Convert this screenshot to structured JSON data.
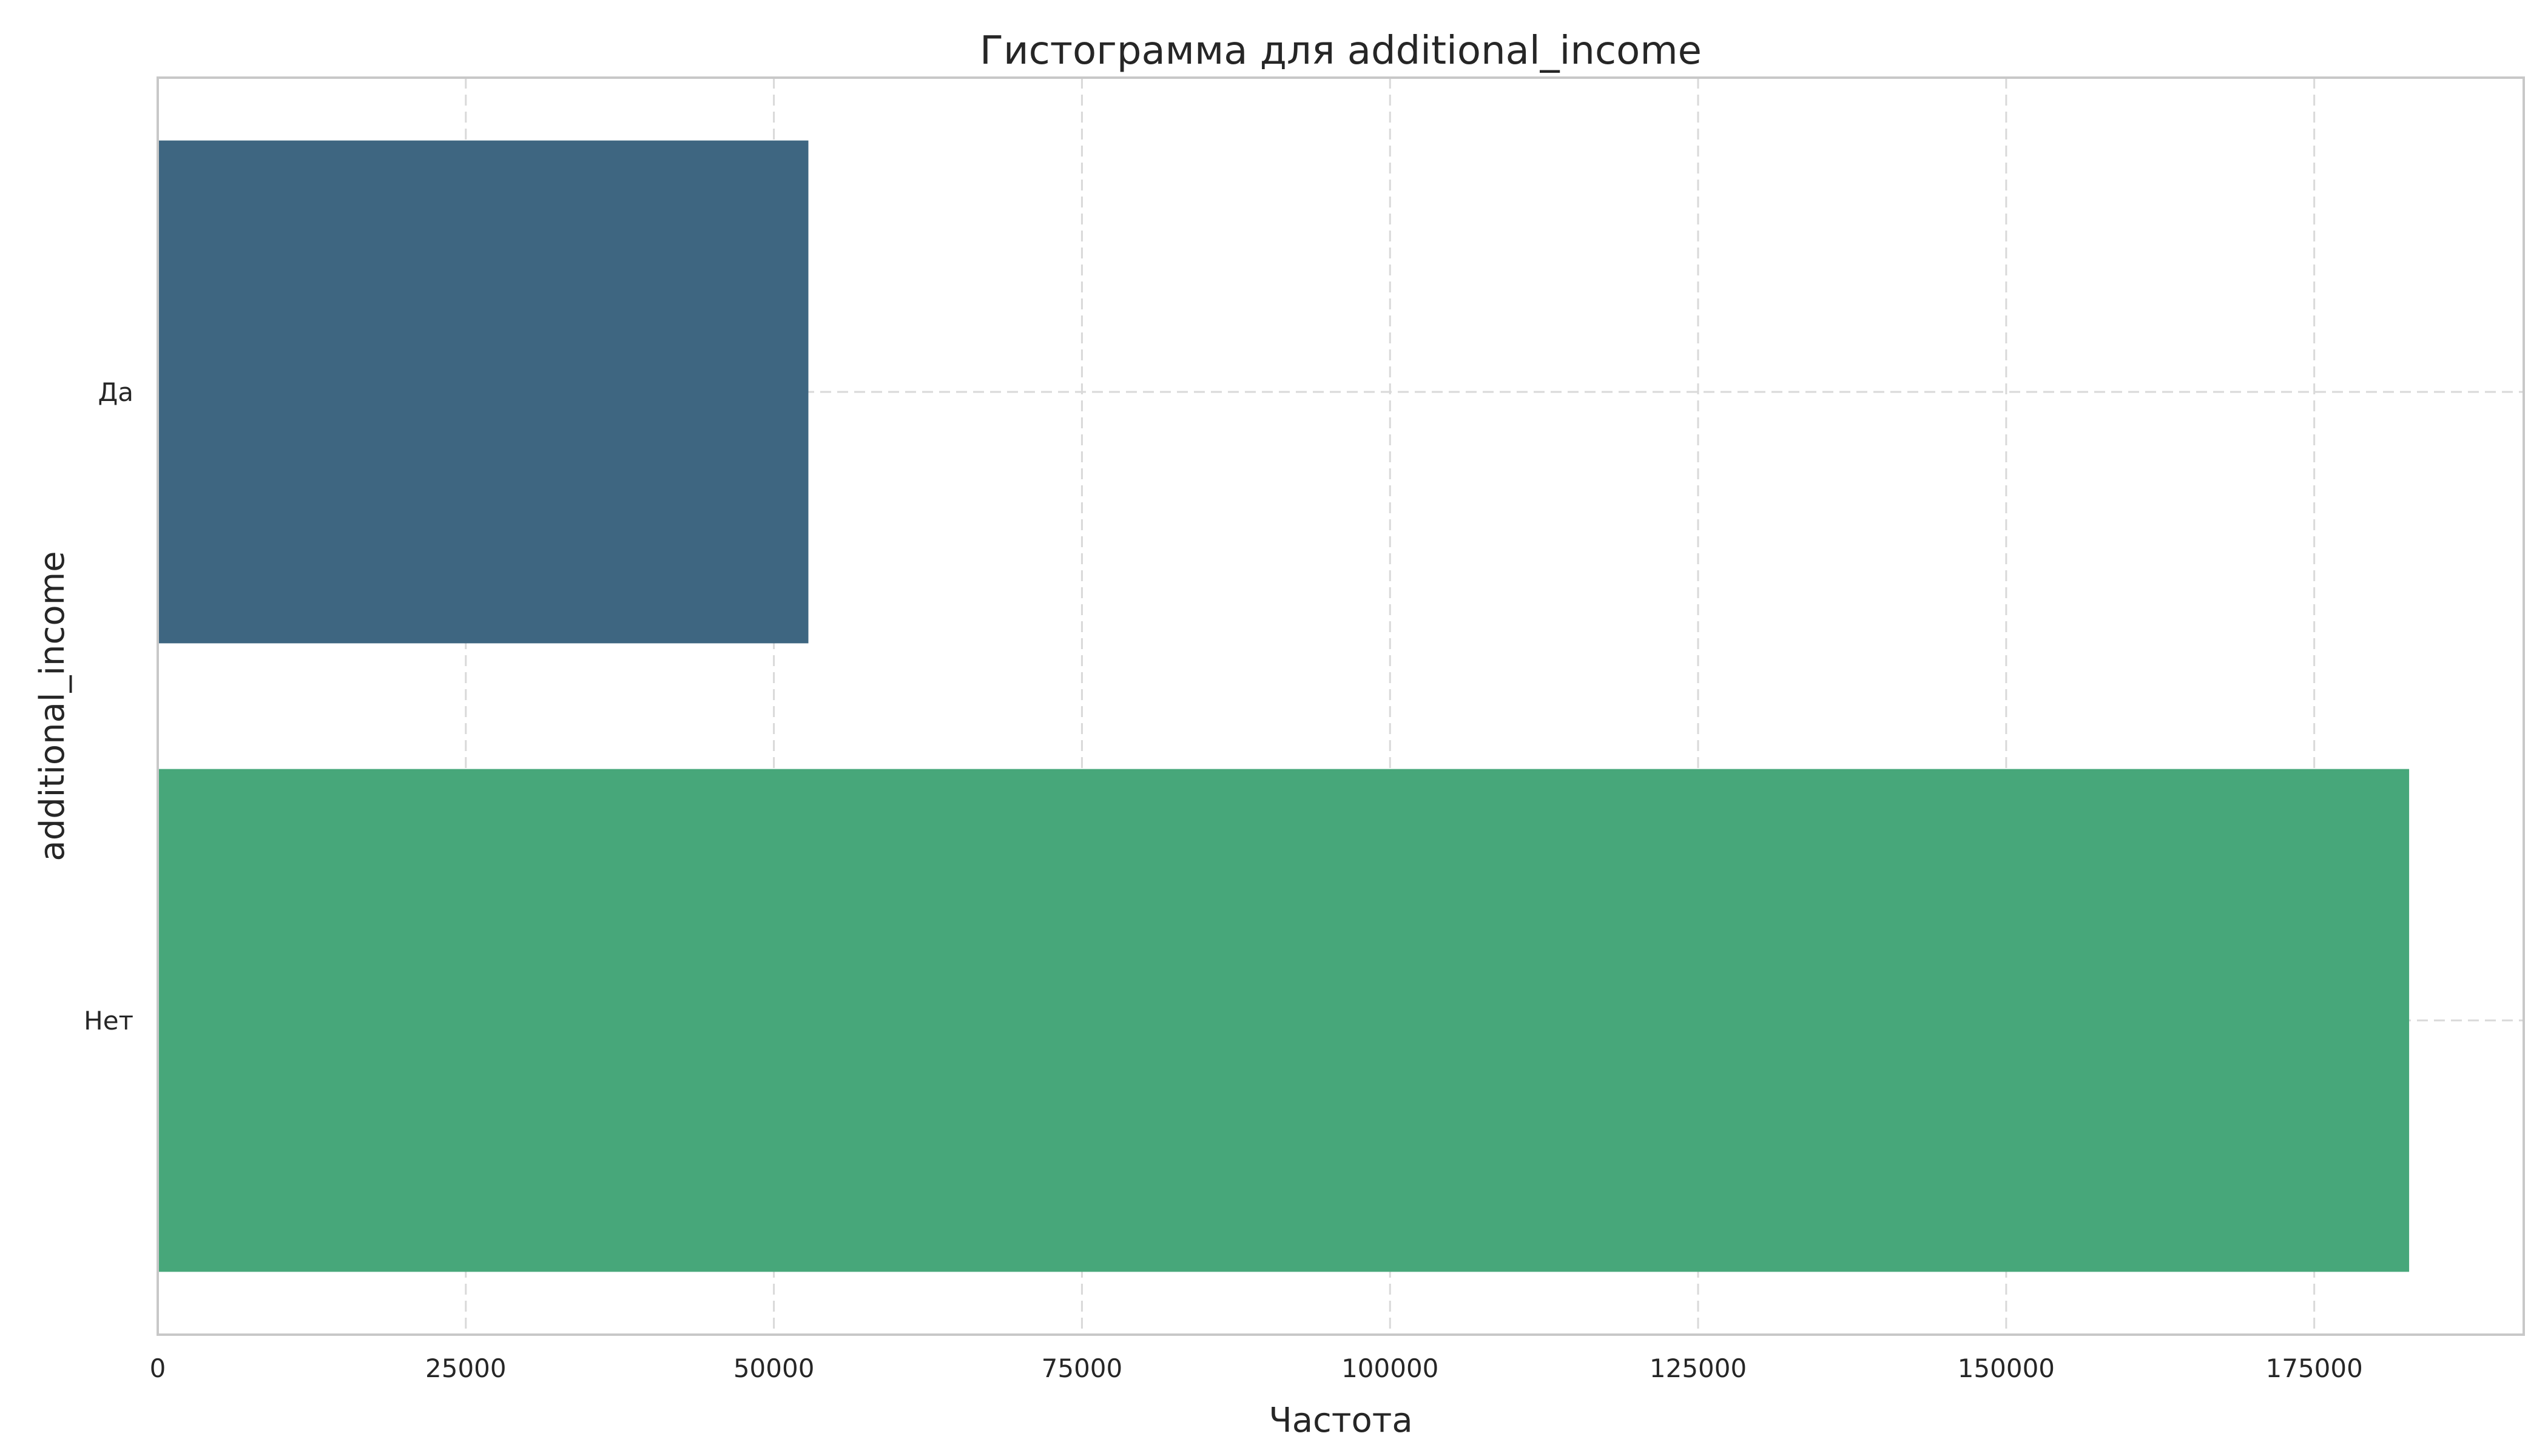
{
  "chart_data": {
    "type": "bar",
    "orientation": "horizontal",
    "title": "Гистограмма для additional_income",
    "xlabel": "Частота",
    "ylabel": "additional_income",
    "categories": [
      "Да",
      "Нет"
    ],
    "values": [
      52800,
      182700
    ],
    "colors": [
      "#3e6681",
      "#47a77a"
    ],
    "xlim": [
      0,
      192000
    ],
    "xticks": [
      0,
      25000,
      50000,
      75000,
      100000,
      125000,
      150000,
      175000
    ],
    "xtick_labels": [
      "0",
      "25000",
      "50000",
      "75000",
      "100000",
      "125000",
      "150000",
      "175000"
    ],
    "grid": true
  }
}
